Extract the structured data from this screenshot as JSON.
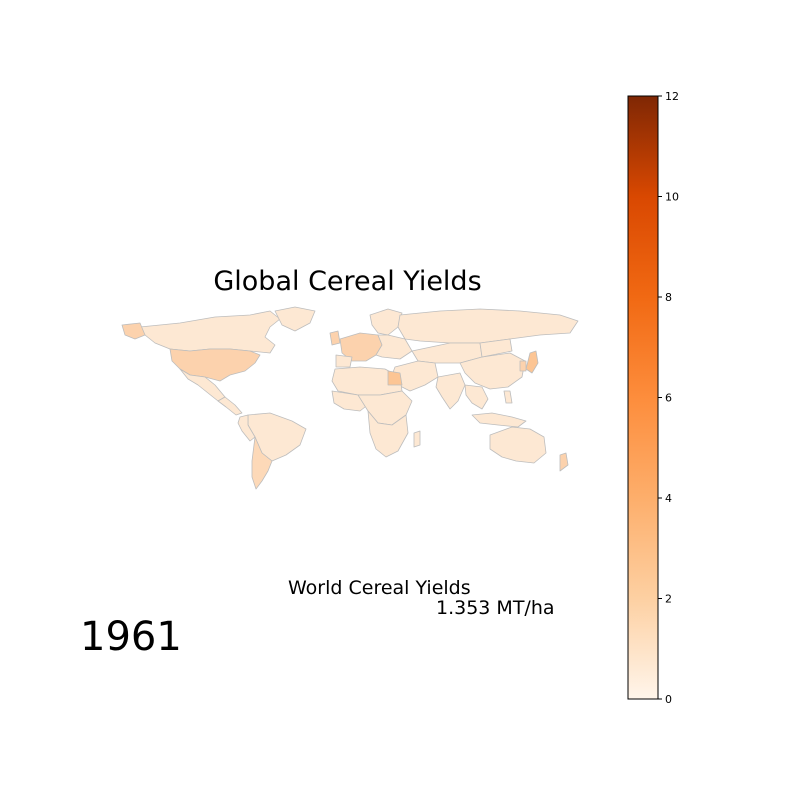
{
  "title": "Global Cereal Yields",
  "year": "1961",
  "world_label": "World Cereal Yields",
  "world_value": "1.353 MT/ha",
  "colorbar": {
    "min": 0,
    "max": 12,
    "ticks": [
      "0",
      "2",
      "4",
      "6",
      "8",
      "10",
      "12"
    ],
    "colors": [
      "#fff5eb",
      "#fdd0a2",
      "#fdae6b",
      "#fd8d3c",
      "#f16913",
      "#d94801",
      "#7f2704"
    ]
  },
  "map": {
    "fill_low": "#fde8d3",
    "fill_mid": "#fcd2ad",
    "border": "#bdbdbd"
  }
}
